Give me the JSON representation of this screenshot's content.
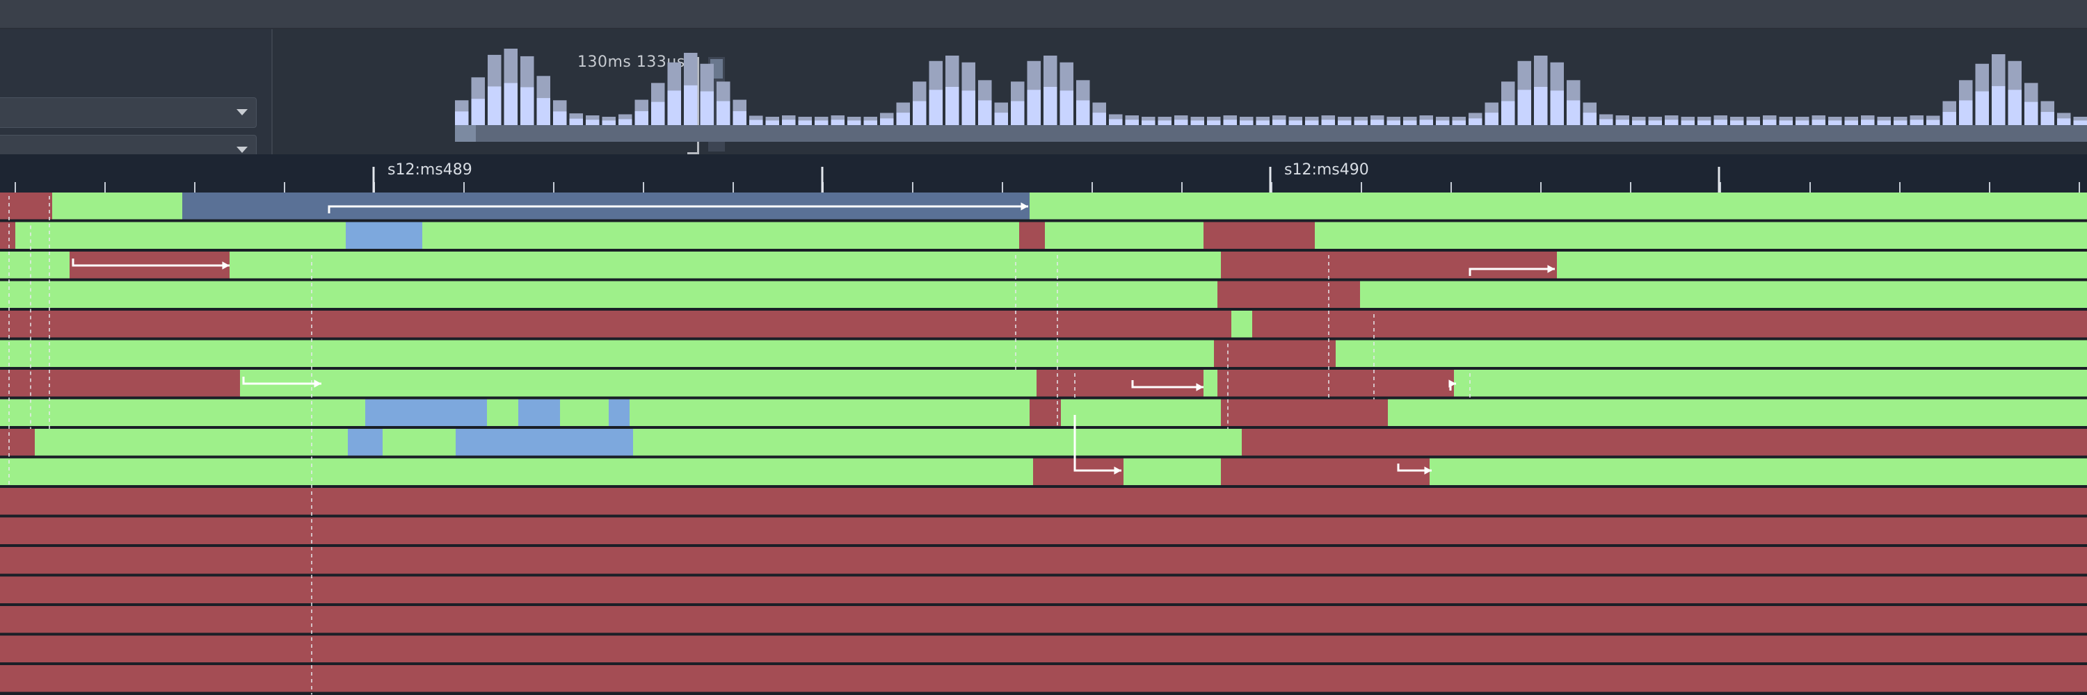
{
  "histogram": {
    "time_label": "130ms 133µs",
    "bar_color_hi": "#9aa4bf",
    "bar_color_lo": "#c8d4ff"
  },
  "ruler": {
    "marker_1": "s12:ms489",
    "marker_2": "s12:ms490"
  },
  "colors": {
    "running": "#9ef08a",
    "waiting": "#a44d54",
    "selected": "#7da8dd",
    "span": "#5a7196"
  },
  "tracks": {
    "count": 17,
    "active_rows": 10
  }
}
